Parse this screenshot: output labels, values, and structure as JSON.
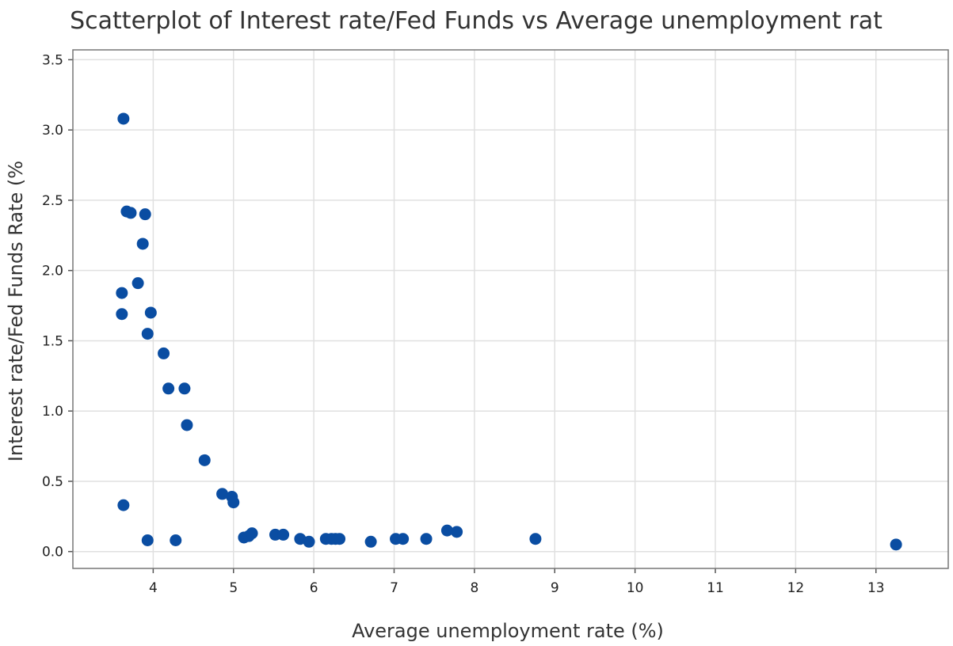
{
  "chart_data": {
    "type": "scatter",
    "title": "Scatterplot of Interest rate/Fed Funds  vs Average unemployment rat",
    "xlabel": "Average unemployment rate (%)",
    "ylabel": "Interest rate/Fed Funds Rate (%",
    "xlim": [
      3.0,
      13.9
    ],
    "ylim": [
      -0.12,
      3.57
    ],
    "xticks": [
      4,
      5,
      6,
      7,
      8,
      9,
      10,
      11,
      12,
      13
    ],
    "yticks": [
      0.0,
      0.5,
      1.0,
      1.5,
      2.0,
      2.5,
      3.0,
      3.5
    ],
    "ytick_labels": [
      "0.0",
      "0.5",
      "1.0",
      "1.5",
      "2.0",
      "2.5",
      "3.0",
      "3.5"
    ],
    "grid": true,
    "marker_color": "#0a4da2",
    "points": [
      {
        "x": 3.63,
        "y": 3.08
      },
      {
        "x": 3.67,
        "y": 2.42
      },
      {
        "x": 3.72,
        "y": 2.41
      },
      {
        "x": 3.9,
        "y": 2.4
      },
      {
        "x": 3.87,
        "y": 2.19
      },
      {
        "x": 3.81,
        "y": 1.91
      },
      {
        "x": 3.61,
        "y": 1.84
      },
      {
        "x": 3.61,
        "y": 1.69
      },
      {
        "x": 3.97,
        "y": 1.7
      },
      {
        "x": 3.93,
        "y": 1.55
      },
      {
        "x": 4.13,
        "y": 1.41
      },
      {
        "x": 4.19,
        "y": 1.16
      },
      {
        "x": 4.39,
        "y": 1.16
      },
      {
        "x": 4.42,
        "y": 0.9
      },
      {
        "x": 4.64,
        "y": 0.65
      },
      {
        "x": 3.63,
        "y": 0.33
      },
      {
        "x": 3.93,
        "y": 0.08
      },
      {
        "x": 4.28,
        "y": 0.08
      },
      {
        "x": 4.86,
        "y": 0.41
      },
      {
        "x": 4.98,
        "y": 0.39
      },
      {
        "x": 5.0,
        "y": 0.35
      },
      {
        "x": 5.13,
        "y": 0.1
      },
      {
        "x": 5.19,
        "y": 0.11
      },
      {
        "x": 5.23,
        "y": 0.13
      },
      {
        "x": 5.52,
        "y": 0.12
      },
      {
        "x": 5.62,
        "y": 0.12
      },
      {
        "x": 5.83,
        "y": 0.09
      },
      {
        "x": 5.94,
        "y": 0.07
      },
      {
        "x": 6.15,
        "y": 0.09
      },
      {
        "x": 6.22,
        "y": 0.09
      },
      {
        "x": 6.27,
        "y": 0.09
      },
      {
        "x": 6.32,
        "y": 0.09
      },
      {
        "x": 6.71,
        "y": 0.07
      },
      {
        "x": 7.02,
        "y": 0.09
      },
      {
        "x": 7.11,
        "y": 0.09
      },
      {
        "x": 7.4,
        "y": 0.09
      },
      {
        "x": 7.66,
        "y": 0.15
      },
      {
        "x": 7.78,
        "y": 0.14
      },
      {
        "x": 8.76,
        "y": 0.09
      },
      {
        "x": 13.25,
        "y": 0.05
      }
    ]
  }
}
